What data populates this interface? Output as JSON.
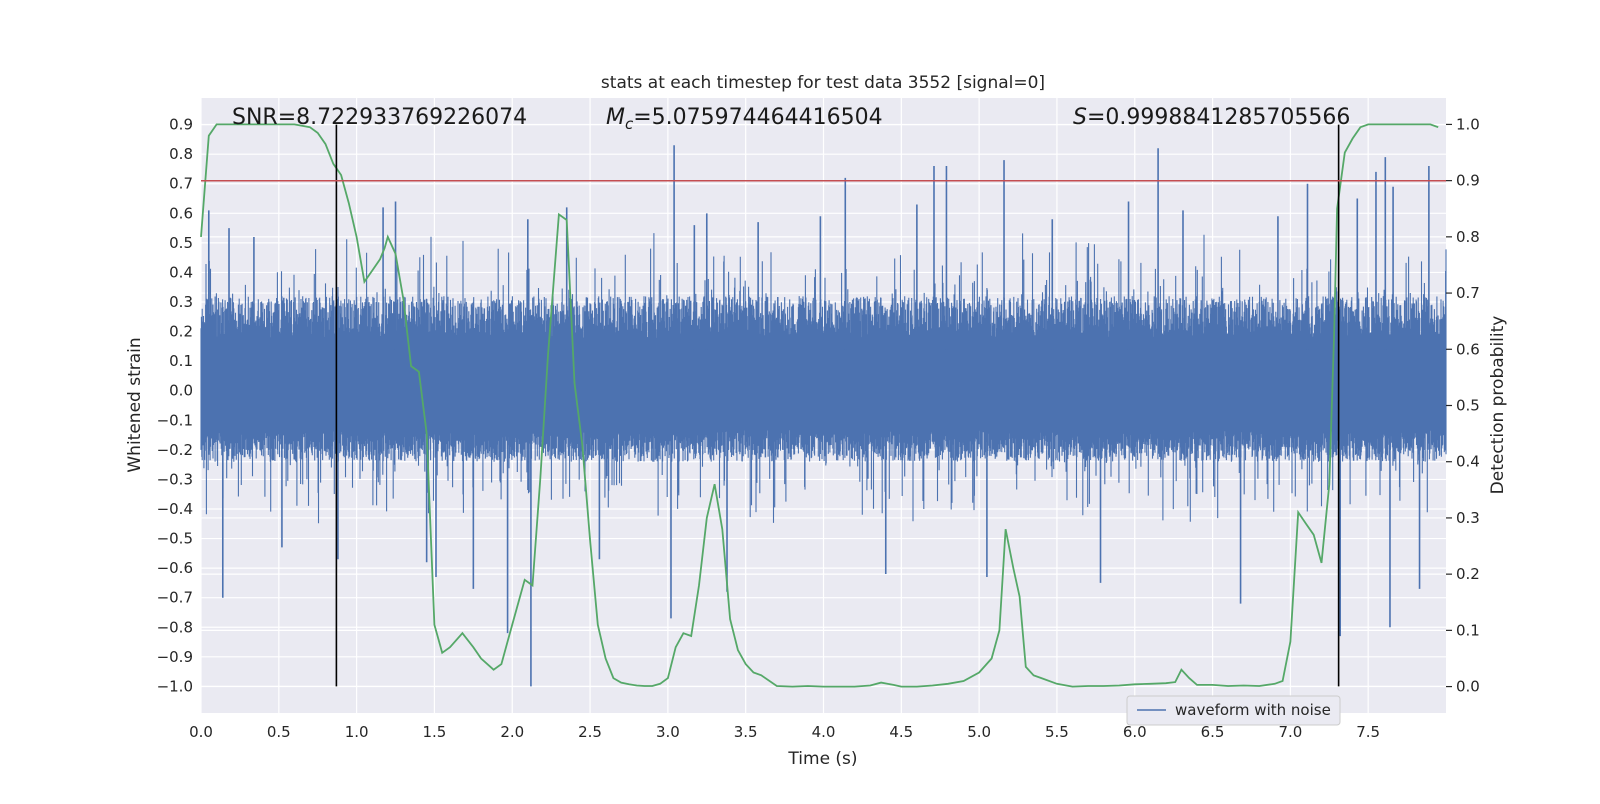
{
  "chart_data": {
    "type": "line",
    "title": "stats at each timestep for test data 3552 [signal=0]",
    "xlabel": "Time (s)",
    "ylabel": "Whitened strain",
    "y2label": "Detection probability",
    "xlim": [
      0.0,
      8.0
    ],
    "ylim": [
      -1.09,
      0.99
    ],
    "y2lim": [
      -0.047,
      1.047
    ],
    "grid": true,
    "x_ticks": [
      0.0,
      0.5,
      1.0,
      1.5,
      2.0,
      2.5,
      3.0,
      3.5,
      4.0,
      4.5,
      5.0,
      5.5,
      6.0,
      6.5,
      7.0,
      7.5
    ],
    "x_tick_labels": [
      "0.0",
      "0.5",
      "1.0",
      "1.5",
      "2.0",
      "2.5",
      "3.0",
      "3.5",
      "4.0",
      "4.5",
      "5.0",
      "5.5",
      "6.0",
      "6.5",
      "7.0",
      "7.5"
    ],
    "y_ticks": [
      0.9,
      0.8,
      0.7,
      0.6,
      0.5,
      0.4,
      0.3,
      0.2,
      0.1,
      0.0,
      -0.1,
      -0.2,
      -0.3,
      -0.4,
      -0.5,
      -0.6,
      -0.7,
      -0.8,
      -0.9,
      -1.0
    ],
    "y_tick_labels": [
      "0.9",
      "0.8",
      "0.7",
      "0.6",
      "0.5",
      "0.4",
      "0.3",
      "0.2",
      "0.1",
      "0.0",
      "−0.1",
      "−0.2",
      "−0.3",
      "−0.4",
      "−0.5",
      "−0.6",
      "−0.7",
      "−0.8",
      "−0.9",
      "−1.0"
    ],
    "y2_ticks": [
      1.0,
      0.9,
      0.8,
      0.7,
      0.6,
      0.5,
      0.4,
      0.3,
      0.2,
      0.1,
      0.0
    ],
    "y2_tick_labels": [
      "1.0",
      "0.9",
      "0.8",
      "0.7",
      "0.6",
      "0.5",
      "0.4",
      "0.3",
      "0.2",
      "0.1",
      "0.0"
    ],
    "threshold_y": 0.71,
    "vertical_lines_x": [
      0.87,
      7.31
    ],
    "vertical_lines_range": [
      -1.0,
      0.9
    ],
    "annotations": {
      "snr": "SNR=8.722933769226074",
      "mc_symbol": "M",
      "mc_sub": "c",
      "mc_value": "=5.075974464416504",
      "s_symbol": "S",
      "s_value": "=0.9998841285705566"
    },
    "legend": {
      "label": "waveform with noise",
      "placement": "lower-right"
    },
    "series": [
      {
        "name": "waveform with noise",
        "axis": "left",
        "envelope_note": "dense noise trace summarized by typical envelope and notable spikes",
        "typical_max": 0.32,
        "typical_min": -0.24,
        "spike_x": [
          0.05,
          0.14,
          0.18,
          0.34,
          0.52,
          0.88,
          1.17,
          1.25,
          1.45,
          1.51,
          1.75,
          1.97,
          2.1,
          2.12,
          2.35,
          2.56,
          3.02,
          3.04,
          3.17,
          3.25,
          3.38,
          3.58,
          3.98,
          4.14,
          4.4,
          4.6,
          4.71,
          4.79,
          5.05,
          5.16,
          5.47,
          5.78,
          5.96,
          6.15,
          6.31,
          6.68,
          6.92,
          7.11,
          7.32,
          7.43,
          7.55,
          7.61,
          7.64,
          7.66,
          7.83,
          7.89
        ],
        "spike_y": [
          0.61,
          -0.7,
          0.55,
          0.52,
          -0.53,
          -0.57,
          0.62,
          0.64,
          -0.58,
          -0.63,
          -0.67,
          -0.82,
          0.58,
          -1.0,
          0.62,
          -0.57,
          -0.77,
          0.83,
          0.56,
          0.6,
          -0.68,
          0.57,
          0.59,
          0.72,
          -0.62,
          0.63,
          0.76,
          0.76,
          -0.63,
          0.78,
          0.58,
          -0.65,
          0.64,
          0.82,
          0.61,
          -0.72,
          0.59,
          0.7,
          -0.83,
          0.65,
          0.74,
          0.79,
          -0.8,
          0.69,
          -0.67,
          0.76
        ]
      },
      {
        "name": "detection probability",
        "axis": "right",
        "x": [
          0.0,
          0.05,
          0.1,
          0.2,
          0.3,
          0.4,
          0.5,
          0.6,
          0.7,
          0.75,
          0.8,
          0.85,
          0.9,
          0.95,
          1.0,
          1.05,
          1.1,
          1.15,
          1.18,
          1.2,
          1.25,
          1.3,
          1.35,
          1.4,
          1.45,
          1.5,
          1.55,
          1.6,
          1.68,
          1.75,
          1.8,
          1.88,
          1.93,
          1.98,
          2.03,
          2.08,
          2.13,
          2.18,
          2.23,
          2.3,
          2.35,
          2.4,
          2.45,
          2.5,
          2.55,
          2.6,
          2.65,
          2.7,
          2.75,
          2.8,
          2.85,
          2.9,
          2.95,
          3.0,
          3.05,
          3.1,
          3.15,
          3.2,
          3.25,
          3.3,
          3.35,
          3.4,
          3.45,
          3.5,
          3.55,
          3.6,
          3.7,
          3.8,
          3.9,
          4.0,
          4.1,
          4.2,
          4.3,
          4.37,
          4.45,
          4.5,
          4.6,
          4.7,
          4.8,
          4.9,
          5.0,
          5.08,
          5.13,
          5.17,
          5.22,
          5.26,
          5.3,
          5.35,
          5.4,
          5.5,
          5.6,
          5.7,
          5.8,
          5.9,
          6.0,
          6.1,
          6.2,
          6.26,
          6.3,
          6.35,
          6.4,
          6.5,
          6.6,
          6.7,
          6.8,
          6.9,
          6.95,
          7.0,
          7.05,
          7.1,
          7.15,
          7.2,
          7.25,
          7.28,
          7.3,
          7.35,
          7.4,
          7.45,
          7.5,
          7.6,
          7.7,
          7.8,
          7.9,
          7.95
        ],
        "y": [
          0.8,
          0.98,
          1.0,
          1.0,
          1.0,
          1.0,
          1.0,
          1.0,
          0.995,
          0.985,
          0.965,
          0.93,
          0.91,
          0.86,
          0.8,
          0.72,
          0.74,
          0.76,
          0.78,
          0.8,
          0.77,
          0.69,
          0.57,
          0.56,
          0.45,
          0.11,
          0.06,
          0.07,
          0.095,
          0.07,
          0.05,
          0.03,
          0.04,
          0.09,
          0.14,
          0.19,
          0.18,
          0.37,
          0.59,
          0.84,
          0.83,
          0.54,
          0.43,
          0.26,
          0.11,
          0.05,
          0.015,
          0.007,
          0.004,
          0.002,
          0.001,
          0.001,
          0.005,
          0.015,
          0.07,
          0.095,
          0.09,
          0.18,
          0.3,
          0.36,
          0.28,
          0.12,
          0.065,
          0.04,
          0.025,
          0.02,
          0.001,
          0.0,
          0.001,
          0.0,
          0.0,
          0.0,
          0.002,
          0.007,
          0.003,
          0.0,
          0.0,
          0.002,
          0.005,
          0.01,
          0.025,
          0.05,
          0.1,
          0.28,
          0.21,
          0.16,
          0.035,
          0.02,
          0.015,
          0.005,
          0.0,
          0.001,
          0.001,
          0.002,
          0.004,
          0.005,
          0.006,
          0.008,
          0.03,
          0.015,
          0.003,
          0.003,
          0.001,
          0.002,
          0.001,
          0.005,
          0.01,
          0.08,
          0.31,
          0.29,
          0.27,
          0.22,
          0.36,
          0.62,
          0.85,
          0.95,
          0.975,
          0.995,
          1.0,
          1.0,
          1.0,
          1.0,
          1.0,
          0.995
        ]
      }
    ]
  },
  "colors": {
    "waveform": "#4c72b0",
    "probability": "#55a868",
    "threshold": "#c44e52",
    "plot_bg": "#eaeaf2",
    "grid": "#ffffff",
    "vline": "#000000"
  }
}
